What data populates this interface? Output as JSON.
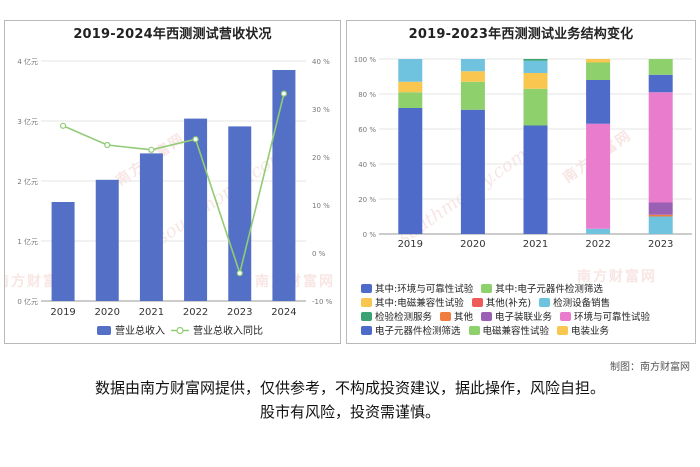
{
  "left_chart": {
    "title": "2019-2024年西测测试营收状况",
    "left_axis_ticks": [
      "0 亿元",
      "1 亿元",
      "2 亿元",
      "3 亿元",
      "4 亿元"
    ],
    "right_axis_ticks": [
      "-10 %",
      "0 %",
      "10 %",
      "20 %",
      "30 %",
      "40 %"
    ],
    "legend": {
      "bar": "营业总收入",
      "line": "营业总收入同比"
    }
  },
  "right_chart": {
    "title": "2019-2023年西测测试业务结构变化",
    "y_ticks": [
      "0 %",
      "20 %",
      "40 %",
      "60 %",
      "80 %",
      "100 %"
    ],
    "legend_rows": [
      [
        {
          "label": "其中:环境与可靠性试验",
          "color": "#4e6bc9"
        },
        {
          "label": "其中:电子元器件检测筛选",
          "color": "#8ed06c"
        }
      ],
      [
        {
          "label": "其中:电磁兼容性试验",
          "color": "#f9c74f"
        },
        {
          "label": "其他(补充)",
          "color": "#ef5b5b"
        },
        {
          "label": "检测设备销售",
          "color": "#6fc3df"
        }
      ],
      [
        {
          "label": "检验检测服务",
          "color": "#3ba272"
        },
        {
          "label": "其他",
          "color": "#f07c3e"
        },
        {
          "label": "电子装联业务",
          "color": "#9a60b4"
        },
        {
          "label": "环境与可靠性试验",
          "color": "#e97ccd"
        }
      ],
      [
        {
          "label": "电子元器件检测筛选",
          "color": "#4e6bc9"
        },
        {
          "label": "电磁兼容性试验",
          "color": "#8ed06c"
        },
        {
          "label": "电装业务",
          "color": "#f9c74f"
        }
      ]
    ]
  },
  "chart_data": [
    {
      "type": "bar",
      "title": "2019-2024年西测测试营收状况",
      "categories": [
        "2019",
        "2020",
        "2021",
        "2022",
        "2023",
        "2024"
      ],
      "series": [
        {
          "name": "营业总收入",
          "kind": "bar",
          "axis": "left",
          "values": [
            1.65,
            2.02,
            2.46,
            3.04,
            2.91,
            3.85
          ],
          "color": "#5470c6"
        },
        {
          "name": "营业总收入同比",
          "kind": "line",
          "axis": "right",
          "values": [
            26.5,
            22.5,
            21.5,
            23.7,
            -4.2,
            33.2
          ],
          "color": "#91cc75"
        }
      ],
      "ylim_left": [
        0,
        4
      ],
      "ylim_right": [
        -10,
        40
      ],
      "ylabel_left": "亿元",
      "ylabel_right": "%",
      "legend": "bottom"
    },
    {
      "type": "bar",
      "stacked": true,
      "title": "2019-2023年西测测试业务结构变化",
      "categories": [
        "2019",
        "2020",
        "2021",
        "2022",
        "2023"
      ],
      "series": [
        {
          "name": "其中:环境与可靠性试验",
          "color": "#4e6bc9",
          "values": [
            72,
            71,
            62,
            0,
            0
          ]
        },
        {
          "name": "其中:电子元器件检测筛选",
          "color": "#8ed06c",
          "values": [
            9,
            16,
            21,
            0,
            0
          ]
        },
        {
          "name": "其中:电磁兼容性试验",
          "color": "#f9c74f",
          "values": [
            6,
            6,
            9,
            0,
            0
          ]
        },
        {
          "name": "其他(补充)",
          "color": "#ef5b5b",
          "values": [
            0,
            0,
            0,
            0,
            0
          ]
        },
        {
          "name": "检测设备销售",
          "color": "#6fc3df",
          "values": [
            13,
            7,
            7,
            3,
            10
          ]
        },
        {
          "name": "检验检测服务",
          "color": "#3ba272",
          "values": [
            0,
            0,
            1,
            0,
            0
          ]
        },
        {
          "name": "其他",
          "color": "#f07c3e",
          "values": [
            0,
            0,
            0,
            0,
            1
          ]
        },
        {
          "name": "电子装联业务",
          "color": "#9a60b4",
          "values": [
            0,
            0,
            0,
            0,
            7
          ]
        },
        {
          "name": "环境与可靠性试验",
          "color": "#e97ccd",
          "values": [
            0,
            0,
            0,
            60,
            63
          ]
        },
        {
          "name": "电子元器件检测筛选",
          "color": "#4e6bc9",
          "values": [
            0,
            0,
            0,
            25,
            10
          ]
        },
        {
          "name": "电磁兼容性试验",
          "color": "#8ed06c",
          "values": [
            0,
            0,
            0,
            10,
            9
          ]
        },
        {
          "name": "电装业务",
          "color": "#f9c74f",
          "values": [
            0,
            0,
            0,
            2,
            0
          ]
        }
      ],
      "ylim": [
        0,
        100
      ],
      "ylabel": "%",
      "legend": "bottom"
    }
  ],
  "watermark": {
    "cn": "南方财富网",
    "en": "southmoney.com"
  },
  "credit": "制图：南方财富网",
  "disclaimer": {
    "line1": "数据由南方财富网提供，仅供参考，不构成投资建议，据此操作，风险自担。",
    "line2": "股市有风险，投资需谨慎。"
  }
}
